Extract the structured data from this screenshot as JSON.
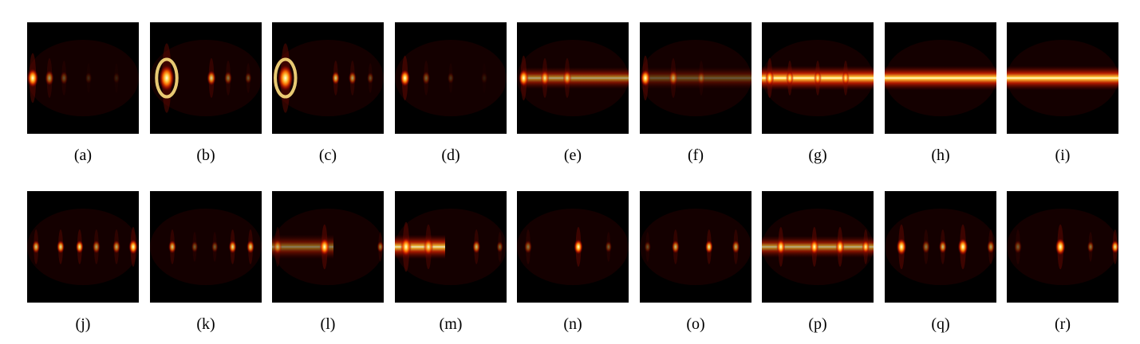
{
  "figure": {
    "row1": [
      {
        "label": "(a)",
        "kind": "spots",
        "spots": [
          {
            "x": 0.05,
            "i": 1.0,
            "w": 1.0
          },
          {
            "x": 0.2,
            "i": 0.55,
            "w": 0.8
          },
          {
            "x": 0.33,
            "i": 0.3,
            "w": 0.7
          },
          {
            "x": 0.55,
            "i": 0.15,
            "w": 0.6
          },
          {
            "x": 0.8,
            "i": 0.12,
            "w": 0.6
          }
        ]
      },
      {
        "label": "(b)",
        "kind": "spots",
        "spots": [
          {
            "x": 0.15,
            "i": 1.0,
            "w": 1.4,
            "ring": true
          },
          {
            "x": 0.55,
            "i": 0.8,
            "w": 0.8
          },
          {
            "x": 0.7,
            "i": 0.45,
            "w": 0.7
          },
          {
            "x": 0.88,
            "i": 0.3,
            "w": 0.6
          }
        ]
      },
      {
        "label": "(c)",
        "kind": "spots",
        "spots": [
          {
            "x": 0.12,
            "i": 1.0,
            "w": 1.4,
            "ring": true
          },
          {
            "x": 0.57,
            "i": 0.75,
            "w": 0.7
          },
          {
            "x": 0.72,
            "i": 0.6,
            "w": 0.7
          },
          {
            "x": 0.88,
            "i": 0.3,
            "w": 0.6
          }
        ]
      },
      {
        "label": "(d)",
        "kind": "spots",
        "spots": [
          {
            "x": 0.09,
            "i": 1.0,
            "w": 0.9
          },
          {
            "x": 0.28,
            "i": 0.35,
            "w": 0.7
          },
          {
            "x": 0.5,
            "i": 0.2,
            "w": 0.6
          },
          {
            "x": 0.8,
            "i": 0.1,
            "w": 0.6
          }
        ]
      },
      {
        "label": "(e)",
        "kind": "band",
        "spots": [
          {
            "x": 0.06,
            "i": 1.0,
            "w": 0.9
          },
          {
            "x": 0.25,
            "i": 0.8,
            "w": 0.8
          },
          {
            "x": 0.45,
            "i": 0.7,
            "w": 0.8
          }
        ],
        "band": {
          "from": 0.05,
          "to": 1.0,
          "i": 0.65,
          "h": 0.09
        }
      },
      {
        "label": "(f)",
        "kind": "band",
        "spots": [
          {
            "x": 0.05,
            "i": 1.0,
            "w": 0.9
          },
          {
            "x": 0.3,
            "i": 0.55,
            "w": 0.8
          },
          {
            "x": 0.55,
            "i": 0.3,
            "w": 0.7
          }
        ],
        "band": {
          "from": 0.05,
          "to": 1.0,
          "i": 0.35,
          "h": 0.09
        }
      },
      {
        "label": "(g)",
        "kind": "band",
        "spots": [
          {
            "x": 0.07,
            "i": 1.0,
            "w": 0.8
          },
          {
            "x": 0.25,
            "i": 0.9,
            "w": 0.7
          },
          {
            "x": 0.5,
            "i": 0.85,
            "w": 0.7
          },
          {
            "x": 0.75,
            "i": 0.85,
            "w": 0.7
          }
        ],
        "band": {
          "from": 0.0,
          "to": 1.0,
          "i": 1.0,
          "h": 0.1
        }
      },
      {
        "label": "(h)",
        "kind": "band",
        "spots": [],
        "band": {
          "from": 0.0,
          "to": 1.0,
          "i": 1.0,
          "h": 0.1
        }
      },
      {
        "label": "(i)",
        "kind": "band",
        "spots": [],
        "band": {
          "from": 0.0,
          "to": 1.0,
          "i": 1.0,
          "h": 0.1
        }
      }
    ],
    "row2": [
      {
        "label": "(j)",
        "kind": "spots",
        "spots": [
          {
            "x": 0.08,
            "i": 0.75,
            "w": 0.7
          },
          {
            "x": 0.3,
            "i": 0.85,
            "w": 0.7
          },
          {
            "x": 0.47,
            "i": 0.9,
            "w": 0.7
          },
          {
            "x": 0.62,
            "i": 0.6,
            "w": 0.7
          },
          {
            "x": 0.8,
            "i": 0.65,
            "w": 0.7
          },
          {
            "x": 0.95,
            "i": 1.0,
            "w": 0.8
          }
        ]
      },
      {
        "label": "(k)",
        "kind": "spots",
        "spots": [
          {
            "x": 0.2,
            "i": 0.75,
            "w": 0.7
          },
          {
            "x": 0.4,
            "i": 0.35,
            "w": 0.6
          },
          {
            "x": 0.58,
            "i": 0.35,
            "w": 0.6
          },
          {
            "x": 0.74,
            "i": 0.85,
            "w": 0.7
          },
          {
            "x": 0.9,
            "i": 0.8,
            "w": 0.7
          }
        ]
      },
      {
        "label": "(l)",
        "kind": "band",
        "spots": [
          {
            "x": 0.05,
            "i": 0.55,
            "w": 0.8
          },
          {
            "x": 0.47,
            "i": 1.0,
            "w": 0.9
          },
          {
            "x": 0.97,
            "i": 0.5,
            "w": 0.6
          }
        ],
        "band": {
          "from": 0.0,
          "to": 0.55,
          "i": 0.5,
          "h": 0.1
        }
      },
      {
        "label": "(m)",
        "kind": "band",
        "spots": [
          {
            "x": 0.1,
            "i": 1.0,
            "w": 1.0
          },
          {
            "x": 0.3,
            "i": 0.8,
            "w": 0.9
          },
          {
            "x": 0.73,
            "i": 0.7,
            "w": 0.7
          },
          {
            "x": 0.94,
            "i": 0.4,
            "w": 0.6
          }
        ],
        "band": {
          "from": 0.0,
          "to": 0.45,
          "i": 0.9,
          "h": 0.1
        }
      },
      {
        "label": "(n)",
        "kind": "spots",
        "spots": [
          {
            "x": 0.1,
            "i": 0.45,
            "w": 0.7
          },
          {
            "x": 0.55,
            "i": 1.0,
            "w": 0.8
          },
          {
            "x": 0.82,
            "i": 0.35,
            "w": 0.6
          }
        ]
      },
      {
        "label": "(o)",
        "kind": "spots",
        "spots": [
          {
            "x": 0.07,
            "i": 0.3,
            "w": 0.6
          },
          {
            "x": 0.32,
            "i": 0.7,
            "w": 0.7
          },
          {
            "x": 0.62,
            "i": 0.9,
            "w": 0.7
          },
          {
            "x": 0.86,
            "i": 0.65,
            "w": 0.7
          }
        ]
      },
      {
        "label": "(p)",
        "kind": "band",
        "spots": [
          {
            "x": 0.17,
            "i": 1.0,
            "w": 0.8
          },
          {
            "x": 0.47,
            "i": 1.0,
            "w": 0.8
          },
          {
            "x": 0.7,
            "i": 1.0,
            "w": 0.8
          },
          {
            "x": 0.93,
            "i": 0.9,
            "w": 0.7
          }
        ],
        "band": {
          "from": 0.0,
          "to": 1.0,
          "i": 0.7,
          "h": 0.09
        }
      },
      {
        "label": "(q)",
        "kind": "spots",
        "spots": [
          {
            "x": 0.15,
            "i": 1.0,
            "w": 0.9
          },
          {
            "x": 0.37,
            "i": 0.45,
            "w": 0.7
          },
          {
            "x": 0.52,
            "i": 0.7,
            "w": 0.7
          },
          {
            "x": 0.7,
            "i": 1.0,
            "w": 0.9
          },
          {
            "x": 0.95,
            "i": 0.6,
            "w": 0.7
          }
        ]
      },
      {
        "label": "(r)",
        "kind": "spots",
        "spots": [
          {
            "x": 0.1,
            "i": 0.35,
            "w": 0.7
          },
          {
            "x": 0.48,
            "i": 1.0,
            "w": 0.9
          },
          {
            "x": 0.75,
            "i": 0.45,
            "w": 0.6
          },
          {
            "x": 0.97,
            "i": 0.9,
            "w": 0.7
          }
        ]
      }
    ]
  }
}
